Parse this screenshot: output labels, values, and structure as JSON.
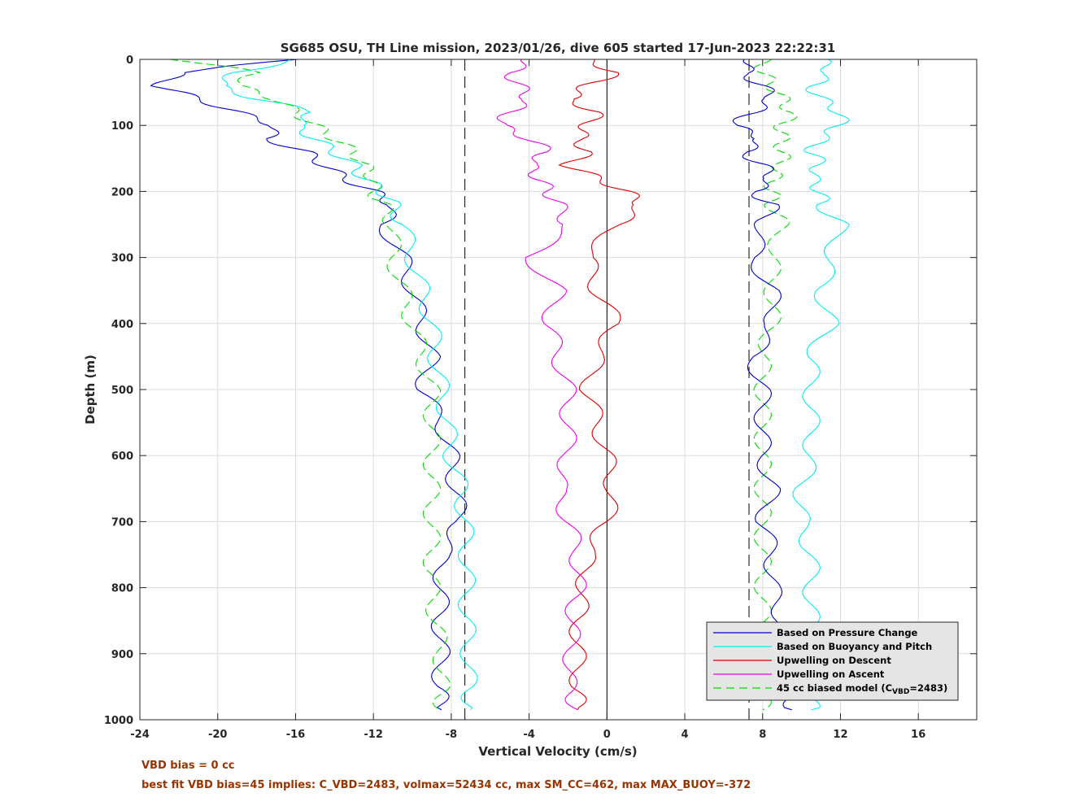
{
  "chart_data": {
    "type": "line",
    "title": "SG685 OSU, TH Line mission, 2023/01/26, dive 605 started 17-Jun-2023 22:22:31",
    "xlabel": "Vertical Velocity (cm/s)",
    "ylabel": "Depth (m)",
    "xlim": [
      -24,
      19
    ],
    "ylim": [
      0,
      1000
    ],
    "y_reversed": true,
    "x_ticks": [
      "-24",
      "-20",
      "-16",
      "-12",
      "-8",
      "-4",
      "0",
      "4",
      "8",
      "12",
      "16"
    ],
    "y_ticks": [
      "0",
      "100",
      "200",
      "300",
      "400",
      "500",
      "600",
      "700",
      "800",
      "900",
      "1000"
    ],
    "grid": true,
    "legend_position": "bottom-right",
    "depth": [
      0,
      20,
      40,
      60,
      80,
      100,
      120,
      140,
      160,
      180,
      200,
      220,
      250,
      300,
      350,
      400,
      450,
      500,
      550,
      600,
      650,
      700,
      750,
      800,
      850,
      900,
      950,
      985
    ],
    "series": [
      {
        "name": "Based on Pressure Change",
        "color": "#0000cc",
        "side": "descent",
        "x": [
          -16,
          -22,
          -23,
          -21,
          -19,
          -17,
          -17.5,
          -15.5,
          -14.5,
          -13.5,
          -12,
          -11,
          -11.5,
          -10.5,
          -10,
          -9.5,
          -9,
          -9.5,
          -8.5,
          -8,
          -7.8,
          -7.5,
          -8.5,
          -8.5,
          -8.6,
          -8.5,
          -8.6,
          -8.5
        ]
      },
      {
        "name": "Based on Buoyancy and Pitch",
        "color": "#00eeee",
        "side": "descent",
        "x": [
          -16,
          -19,
          -20,
          -18,
          -15,
          -16,
          -15,
          -14,
          -13,
          -12.5,
          -11.5,
          -11,
          -10.5,
          -10,
          -9.5,
          -9,
          -8.8,
          -8.5,
          -8.2,
          -8,
          -7.5,
          -7.3,
          -7.2,
          -7.2,
          -7.2,
          -7.1,
          -7.1,
          -7.0
        ]
      },
      {
        "name": "Upwelling on Descent",
        "color": "#dd0000",
        "side": "descent",
        "x": [
          -1,
          0.5,
          -1,
          -2,
          -0.5,
          -1,
          -1.5,
          -1,
          -2,
          -0.5,
          1,
          1.8,
          0.5,
          -1,
          -0.5,
          0.5,
          -0.5,
          -1,
          -0.5,
          0,
          0.3,
          0,
          -1,
          -1.2,
          -1.5,
          -1.5,
          -1.5,
          -1.5
        ]
      },
      {
        "name": "Upwelling on Ascent",
        "color": "#ee00ee",
        "side": "ascent",
        "x": [
          -4,
          -5,
          -4.5,
          -4,
          -5,
          -5.5,
          -4,
          -3,
          -4,
          -3.5,
          -3,
          -2.5,
          -2,
          -4,
          -2.5,
          -3,
          -2.5,
          -2,
          -2,
          -2,
          -2.5,
          -2,
          -1.5,
          -1.5,
          -1.8,
          -1.8,
          -2,
          -1.5
        ]
      },
      {
        "name": "45 cc biased model (C<sub>VBD</sub>=2483)",
        "legend_text": "45 cc biased model (C",
        "legend_sub": "VBD",
        "legend_tail": "=2483)",
        "color": "#00dd00",
        "dashed": true,
        "side": "both",
        "x_descent": [
          -22,
          -18,
          -19,
          -17,
          -16,
          -15,
          -14,
          -13,
          -12.5,
          -12,
          -12,
          -11.5,
          -11,
          -11,
          -10.5,
          -10,
          -9.5,
          -9,
          -9,
          -9,
          -9,
          -9,
          -9,
          -9,
          -8.8,
          -8.5,
          -8.5,
          -8.5
        ],
        "x_ascent": [
          8,
          8,
          8.5,
          9,
          9.5,
          9,
          9,
          9,
          9,
          8.5,
          8.5,
          8.5,
          9,
          8.5,
          8.5,
          8.5,
          8,
          8,
          8,
          8,
          8,
          8,
          8,
          8,
          8,
          8,
          8,
          8
        ]
      }
    ],
    "ascent_series": [
      {
        "name": "Based on Pressure Change",
        "color": "#0000cc",
        "x": [
          7.5,
          7,
          8,
          8.5,
          7.5,
          6.5,
          8,
          7,
          8,
          8.5,
          7.5,
          8.5,
          8,
          7.5,
          8.5,
          8.5,
          7.5,
          8,
          8,
          8,
          8.5,
          8,
          8.5,
          8.5,
          9,
          9,
          9.5,
          9.5
        ]
      },
      {
        "name": "Based on Buoyancy and Pitch",
        "color": "#00eeee",
        "x": [
          11,
          11.5,
          10.5,
          11,
          12,
          12,
          11,
          10.5,
          11,
          10.5,
          11,
          11,
          12,
          11.5,
          11,
          11.5,
          10.5,
          10.5,
          10.5,
          10.5,
          10,
          10,
          10.5,
          10.5,
          10.5,
          10.5,
          10.5,
          10.5
        ]
      }
    ],
    "reference_lines": {
      "vertical_solid_x": 0,
      "vertical_dashed_x": [
        -7.3,
        7.3
      ]
    }
  },
  "notes": {
    "line1": "VBD bias = 0 cc",
    "line2": "best fit VBD bias=45 implies: C_VBD=2483, volmax=52434 cc, max SM_CC=462, max MAX_BUOY=-372"
  }
}
